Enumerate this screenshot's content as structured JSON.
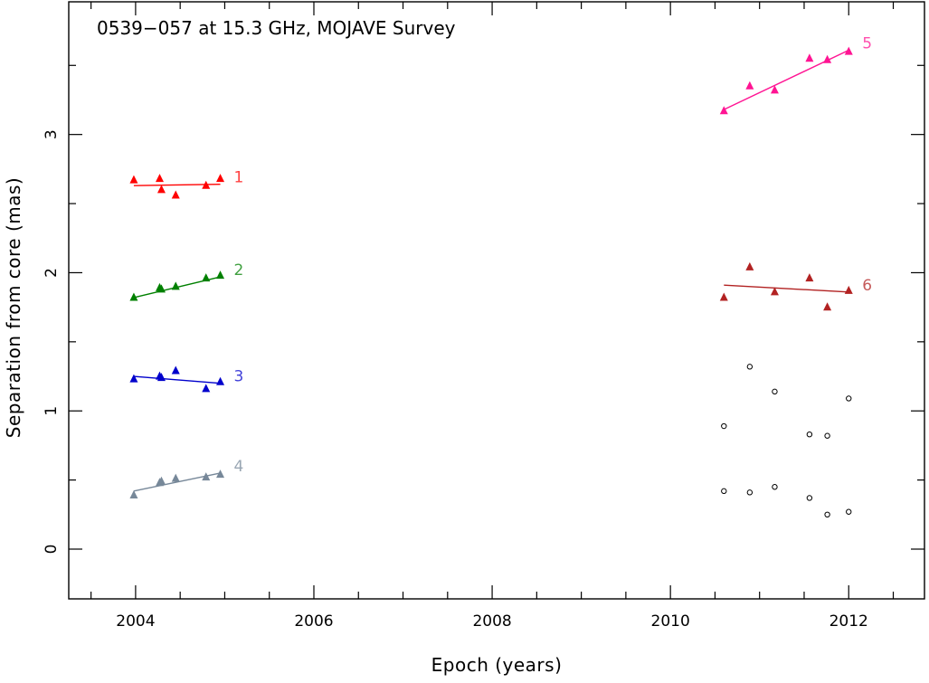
{
  "chart_data": {
    "type": "scatter",
    "title": "0539−057 at 15.3 GHz, MOJAVE Survey",
    "xlabel": "Epoch (years)",
    "ylabel": "Separation from core (mas)",
    "xlim": [
      2003.25,
      2012.85
    ],
    "ylim": [
      -0.36,
      3.96
    ],
    "xticks": [
      "2004",
      "2006",
      "2008",
      "2010",
      "2012"
    ],
    "yticks": [
      "0",
      "1",
      "2",
      "3"
    ],
    "x_minor_step": 0.5,
    "y_minor_step": 0.5,
    "grid": false,
    "colors": {
      "1": "#ff0000",
      "2": "#008000",
      "3": "#0000cc",
      "4": "#778899",
      "5": "#ff1493",
      "6": "#b22222",
      "unassigned": "#000000"
    },
    "series": [
      {
        "name": "1",
        "marker": "triangle",
        "x": [
          2003.98,
          2004.27,
          2004.29,
          2004.45,
          2004.79,
          2004.95
        ],
        "y": [
          2.67,
          2.68,
          2.6,
          2.56,
          2.63,
          2.68
        ],
        "fit": {
          "x": [
            2003.98,
            2004.95
          ],
          "y": [
            2.63,
            2.64
          ]
        }
      },
      {
        "name": "2",
        "marker": "triangle",
        "x": [
          2003.98,
          2004.27,
          2004.29,
          2004.45,
          2004.79,
          2004.95
        ],
        "y": [
          1.82,
          1.89,
          1.88,
          1.9,
          1.96,
          1.98
        ],
        "fit": {
          "x": [
            2003.98,
            2004.95
          ],
          "y": [
            1.82,
            1.97
          ]
        }
      },
      {
        "name": "3",
        "marker": "triangle",
        "x": [
          2003.98,
          2004.27,
          2004.29,
          2004.45,
          2004.79,
          2004.95
        ],
        "y": [
          1.23,
          1.25,
          1.24,
          1.29,
          1.16,
          1.21
        ],
        "fit": {
          "x": [
            2003.98,
            2004.95
          ],
          "y": [
            1.25,
            1.2
          ]
        }
      },
      {
        "name": "4",
        "marker": "triangle",
        "x": [
          2003.98,
          2004.27,
          2004.29,
          2004.45,
          2004.79,
          2004.95
        ],
        "y": [
          0.39,
          0.48,
          0.49,
          0.51,
          0.52,
          0.54
        ],
        "fit": {
          "x": [
            2003.98,
            2004.95
          ],
          "y": [
            0.42,
            0.55
          ]
        }
      },
      {
        "name": "5",
        "marker": "triangle",
        "x": [
          2010.6,
          2010.89,
          2011.17,
          2011.56,
          2011.76,
          2012.0
        ],
        "y": [
          3.17,
          3.35,
          3.32,
          3.55,
          3.54,
          3.6
        ],
        "fit": {
          "x": [
            2010.6,
            2012.0
          ],
          "y": [
            3.18,
            3.61
          ]
        }
      },
      {
        "name": "6",
        "marker": "triangle",
        "x": [
          2010.6,
          2010.89,
          2011.17,
          2011.56,
          2011.76,
          2012.0
        ],
        "y": [
          1.82,
          2.04,
          1.86,
          1.96,
          1.75,
          1.87
        ],
        "fit": {
          "x": [
            2010.6,
            2012.0
          ],
          "y": [
            1.91,
            1.86
          ]
        }
      },
      {
        "name": "",
        "marker": "circle",
        "x": [
          2010.6,
          2010.89,
          2011.17,
          2011.56,
          2011.76,
          2012.0,
          2010.6,
          2010.89,
          2011.17,
          2011.56,
          2011.76,
          2012.0
        ],
        "y": [
          0.89,
          1.32,
          1.14,
          0.83,
          0.82,
          1.09,
          0.42,
          0.41,
          0.45,
          0.37,
          0.25,
          0.27
        ]
      }
    ]
  }
}
